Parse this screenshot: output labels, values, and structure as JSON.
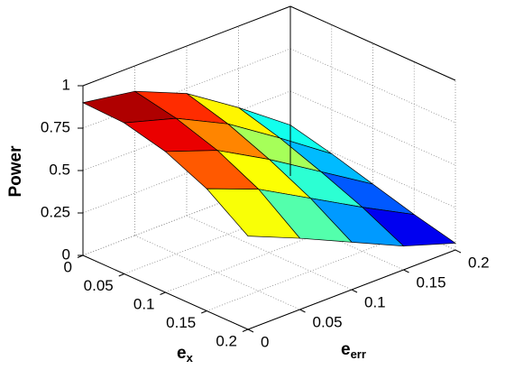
{
  "chart_data": {
    "type": "surface",
    "zlabel": "Power",
    "xlabel": "e",
    "xlabel_sub": "x",
    "ylabel": "e",
    "ylabel_sub": "err",
    "x": [
      0,
      0.05,
      0.1,
      0.15,
      0.2
    ],
    "y": [
      0,
      0.05,
      0.1,
      0.15,
      0.2
    ],
    "z": [
      [
        0.9,
        0.85,
        0.72,
        0.52,
        0.3
      ],
      [
        0.89,
        0.8,
        0.65,
        0.45,
        0.24
      ],
      [
        0.83,
        0.72,
        0.55,
        0.36,
        0.17
      ],
      [
        0.72,
        0.6,
        0.43,
        0.26,
        0.1
      ],
      [
        0.55,
        0.42,
        0.28,
        0.14,
        0.04
      ]
    ],
    "xlim": [
      0,
      0.2
    ],
    "ylim": [
      0,
      0.2
    ],
    "zlim": [
      0,
      1
    ],
    "xticks": [
      0,
      0.05,
      0.1,
      0.15,
      0.2
    ],
    "yticks": [
      0,
      0.05,
      0.1,
      0.15,
      0.2
    ],
    "zticks": [
      0,
      0.25,
      0.5,
      0.75,
      1
    ],
    "grid": true,
    "colormap": "jet",
    "edgecolor": "#000000"
  }
}
